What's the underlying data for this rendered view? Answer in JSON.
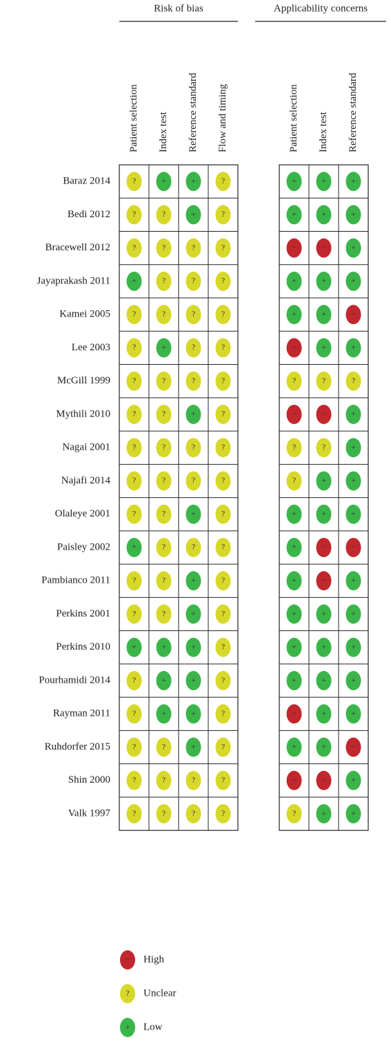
{
  "groups": [
    {
      "title": "Risk of bias",
      "columns": [
        "Patient selection",
        "Index test",
        "Reference standard",
        "Flow and timing"
      ]
    },
    {
      "title": "Applicability concerns",
      "columns": [
        "Patient selection",
        "Index test",
        "Reference standard"
      ]
    }
  ],
  "rows": [
    {
      "study": "Baraz 2014",
      "ratings": [
        [
          "?",
          "+",
          "+",
          "?"
        ],
        [
          "+",
          "+",
          "+"
        ]
      ]
    },
    {
      "study": "Bedi 2012",
      "ratings": [
        [
          "?",
          "?",
          "+",
          "?"
        ],
        [
          "+",
          "+",
          "+"
        ]
      ]
    },
    {
      "study": "Bracewell 2012",
      "ratings": [
        [
          "?",
          "?",
          "?",
          "?"
        ],
        [
          "−",
          "−",
          "+"
        ]
      ]
    },
    {
      "study": "Jayaprakash 2011",
      "ratings": [
        [
          "+",
          "?",
          "?",
          "?"
        ],
        [
          "+",
          "+",
          "+"
        ]
      ]
    },
    {
      "study": "Kamei 2005",
      "ratings": [
        [
          "?",
          "?",
          "?",
          "?"
        ],
        [
          "+",
          "+",
          "−"
        ]
      ]
    },
    {
      "study": "Lee 2003",
      "ratings": [
        [
          "?",
          "+",
          "?",
          "?"
        ],
        [
          "−",
          "+",
          "+"
        ]
      ]
    },
    {
      "study": "McGill 1999",
      "ratings": [
        [
          "?",
          "?",
          "?",
          "?"
        ],
        [
          "?",
          "?",
          "?"
        ]
      ]
    },
    {
      "study": "Mythili 2010",
      "ratings": [
        [
          "?",
          "?",
          "+",
          "?"
        ],
        [
          "−",
          "−",
          "+"
        ]
      ]
    },
    {
      "study": "Nagai 2001",
      "ratings": [
        [
          "?",
          "?",
          "?",
          "?"
        ],
        [
          "?",
          "?",
          "+"
        ]
      ]
    },
    {
      "study": "Najafi 2014",
      "ratings": [
        [
          "?",
          "?",
          "?",
          "?"
        ],
        [
          "?",
          "+",
          "+"
        ]
      ]
    },
    {
      "study": "Olaleye 2001",
      "ratings": [
        [
          "?",
          "?",
          "+",
          "?"
        ],
        [
          "+",
          "+",
          "+"
        ]
      ]
    },
    {
      "study": "Paisley 2002",
      "ratings": [
        [
          "+",
          "?",
          "?",
          "?"
        ],
        [
          "+",
          "−",
          "−"
        ]
      ]
    },
    {
      "study": "Pambianco 2011",
      "ratings": [
        [
          "?",
          "?",
          "+",
          "?"
        ],
        [
          "+",
          "−",
          "+"
        ]
      ]
    },
    {
      "study": "Perkins 2001",
      "ratings": [
        [
          "?",
          "?",
          "+",
          "?"
        ],
        [
          "+",
          "+",
          "+"
        ]
      ]
    },
    {
      "study": "Perkins 2010",
      "ratings": [
        [
          "+",
          "+",
          "+",
          "?"
        ],
        [
          "+",
          "+",
          "+"
        ]
      ]
    },
    {
      "study": "Pourhamidi 2014",
      "ratings": [
        [
          "?",
          "+",
          "+",
          "?"
        ],
        [
          "+",
          "+",
          "+"
        ]
      ]
    },
    {
      "study": "Rayman 2011",
      "ratings": [
        [
          "?",
          "+",
          "+",
          "?"
        ],
        [
          "−",
          "+",
          "+"
        ]
      ]
    },
    {
      "study": "Ruhdorfer 2015",
      "ratings": [
        [
          "?",
          "?",
          "+",
          "?"
        ],
        [
          "+",
          "+",
          "−"
        ]
      ]
    },
    {
      "study": "Shin 2000",
      "ratings": [
        [
          "?",
          "?",
          "?",
          "?"
        ],
        [
          "−",
          "−",
          "+"
        ]
      ]
    },
    {
      "study": "Valk 1997",
      "ratings": [
        [
          "?",
          "?",
          "?",
          "?"
        ],
        [
          "?",
          "+",
          "+"
        ]
      ]
    }
  ],
  "legend": [
    {
      "symbol": "−",
      "label": "High",
      "color": "#c1272d"
    },
    {
      "symbol": "?",
      "label": "Unclear",
      "color": "#d7d82a"
    },
    {
      "symbol": "+",
      "label": "Low",
      "color": "#3bb54a"
    }
  ]
}
